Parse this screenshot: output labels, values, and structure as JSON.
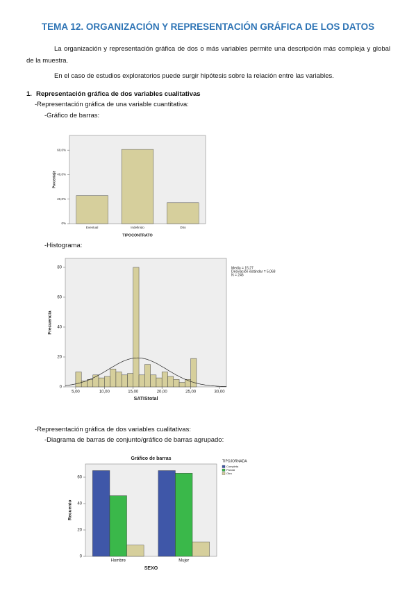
{
  "header": {
    "title": "TEMA 12. ORGANIZACIÓN Y REPRESENTACIÓN GRÁFICA DE LOS DATOS"
  },
  "paragraphs": [
    "La organización y representación gráfica de dos o más variables permite una descripción más compleja y global de la muestra.",
    "En el caso de estudios exploratorios puede surgir hipótesis sobre la relación entre las variables."
  ],
  "section": {
    "number": "1.",
    "title": "Representación gráfica de dos variables cualitativas"
  },
  "items": [
    "-Representación gráfica de una variable cuantitativa:",
    "-Gráfico de barras:",
    "-Histograma:",
    "-Representación gráfica de dos variables cualitativas:",
    "-Diagrama de barras de conjunto/gráfico de barras agrupado:"
  ],
  "chart_data": [
    {
      "type": "bar",
      "categories": [
        "Eventual",
        "Indefinido",
        "Otro"
      ],
      "values": [
        22.9,
        60.6,
        17.1
      ],
      "color": "#d6cf9c",
      "x_label": "TIPOCONTRATO",
      "y_label": "Porcentaje",
      "ylim": [
        0,
        72
      ],
      "yticks": [
        {
          "value": 0,
          "label": "0%"
        },
        {
          "value": 20,
          "label": "20,0%"
        },
        {
          "value": 40,
          "label": "40,0%"
        },
        {
          "value": 60,
          "label": "60,0%"
        }
      ]
    },
    {
      "type": "histogram",
      "bins": [
        5,
        6,
        7,
        8,
        9,
        10,
        11,
        12,
        13,
        14,
        15,
        16,
        17,
        18,
        19,
        20,
        21,
        22,
        23,
        24,
        25,
        26
      ],
      "values": [
        10,
        4,
        5,
        8,
        6,
        7,
        12,
        10,
        8,
        9,
        80,
        8,
        15,
        8,
        6,
        10,
        7,
        5,
        3,
        5,
        19
      ],
      "color": "#d6cf9c",
      "x_label": "SATIStotal",
      "y_label": "Frecuencia",
      "xlim": [
        3.2,
        31.2
      ],
      "ylim": [
        0,
        86
      ],
      "xticks": [
        {
          "value": 5,
          "label": "5,00"
        },
        {
          "value": 10,
          "label": "10,00"
        },
        {
          "value": 15,
          "label": "15,00"
        },
        {
          "value": 20,
          "label": "20,00"
        },
        {
          "value": 25,
          "label": "25,00"
        },
        {
          "value": 30,
          "label": "30,00"
        }
      ],
      "yticks": [
        0,
        20,
        40,
        60,
        80
      ],
      "normal_curve": true,
      "stats": [
        "Media = 15,27",
        "Desviación estándar = 5,068",
        "N = 246"
      ]
    },
    {
      "type": "bar",
      "title": "Gráfico de barras",
      "categories": [
        "Hombre",
        "Mujer"
      ],
      "series": [
        {
          "name": "Completa",
          "color": "#3f57a8",
          "values": [
            65,
            65
          ]
        },
        {
          "name": "Parcial",
          "color": "#3ab84a",
          "values": [
            46,
            63
          ]
        },
        {
          "name": "Otra",
          "color": "#d6cf9c",
          "values": [
            8.5,
            11
          ]
        }
      ],
      "legend_title": "TIPOJORNADA",
      "legend": "right",
      "x_label": "SEXO",
      "y_label": "Recuento",
      "ylim": [
        0,
        70
      ],
      "yticks": [
        0,
        20,
        40,
        60
      ]
    }
  ]
}
